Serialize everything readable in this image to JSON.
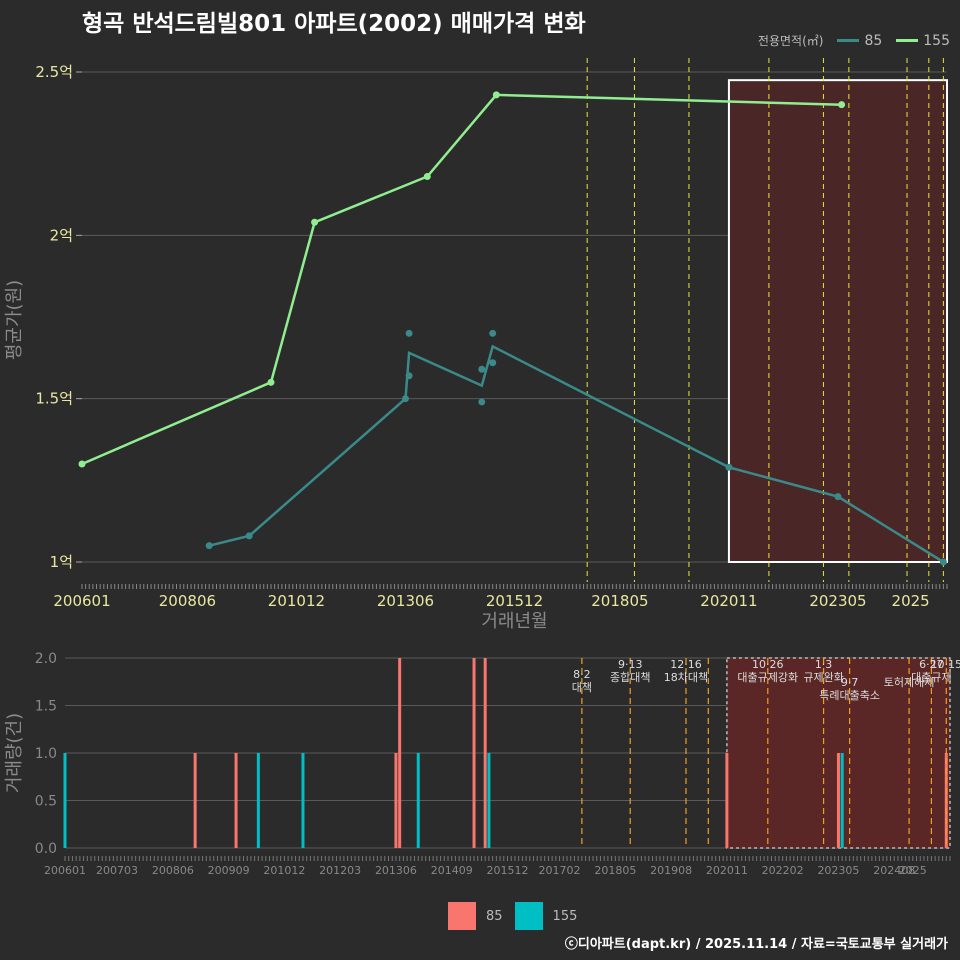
{
  "title": "형곡 반석드림빌801 아파트(2002) 매매가격 변화",
  "footer": "ⓒ디아파트(dapt.kr) / 2025.11.14 / 자료=국토교통부 실거래가",
  "legend": {
    "title": "전용면적(㎡)",
    "items": [
      {
        "label": "85",
        "line_color": "#3a8a8a",
        "bar_color": "#f8766d"
      },
      {
        "label": "155",
        "line_color": "#90ee90",
        "bar_color": "#00bfc4"
      }
    ]
  },
  "chart_data": [
    {
      "type": "line",
      "title": "형곡 반석드림빌801 아파트(2002) 매매가격 변화",
      "xlabel": "거래년월",
      "ylabel": "평균가(원)",
      "xlim": [
        "2006-01",
        "2025-11"
      ],
      "ylim": [
        1.0,
        2.5
      ],
      "x_ticks": [
        "200601",
        "200806",
        "201012",
        "201306",
        "201512",
        "201805",
        "202011",
        "202305",
        "2025"
      ],
      "y_ticks": [
        {
          "value": 1.0,
          "label": "1억"
        },
        {
          "value": 1.5,
          "label": "1.5억"
        },
        {
          "value": 2.0,
          "label": "2억"
        },
        {
          "value": 2.5,
          "label": "2.5억"
        }
      ],
      "series": [
        {
          "name": "85",
          "color": "#3a8a8a",
          "line": [
            [
              "2008-12",
              1.05
            ],
            [
              "2009-11",
              1.08
            ],
            [
              "2013-06",
              1.5
            ],
            [
              "2013-07",
              1.64
            ],
            [
              "2015-03",
              1.54
            ],
            [
              "2015-06",
              1.66
            ],
            [
              "2020-11",
              1.29
            ],
            [
              "2023-05",
              1.2
            ],
            [
              "2025-10",
              1.0
            ]
          ],
          "points": [
            [
              "2008-12",
              1.05
            ],
            [
              "2009-11",
              1.08
            ],
            [
              "2013-06",
              1.5
            ],
            [
              "2013-07",
              1.57
            ],
            [
              "2013-07",
              1.7
            ],
            [
              "2015-03",
              1.49
            ],
            [
              "2015-03",
              1.59
            ],
            [
              "2015-06",
              1.61
            ],
            [
              "2015-06",
              1.7
            ],
            [
              "2020-11",
              1.29
            ],
            [
              "2023-05",
              1.2
            ],
            [
              "2025-10",
              1.0
            ]
          ]
        },
        {
          "name": "155",
          "color": "#90ee90",
          "line": [
            [
              "2006-01",
              1.3
            ],
            [
              "2010-05",
              1.55
            ],
            [
              "2011-05",
              2.04
            ],
            [
              "2013-12",
              2.18
            ],
            [
              "2015-07",
              2.43
            ],
            [
              "2023-06",
              2.4
            ]
          ],
          "points": [
            [
              "2006-01",
              1.3
            ],
            [
              "2010-05",
              1.55
            ],
            [
              "2011-05",
              2.04
            ],
            [
              "2013-12",
              2.18
            ],
            [
              "2015-07",
              2.43
            ],
            [
              "2023-06",
              2.4
            ]
          ]
        }
      ],
      "highlight_box": {
        "from": "2020-11",
        "to": "2025-11",
        "ymin": 1.0,
        "ymax": 2.475
      },
      "policy_lines": [
        "2017-08",
        "2018-09",
        "2019-12",
        "2021-10",
        "2023-01",
        "2023-08",
        "2024-12",
        "2025-06",
        "2025-10"
      ]
    },
    {
      "type": "bar",
      "ylabel": "거래량(건)",
      "xlim": [
        "2006-01",
        "2025-11"
      ],
      "ylim": [
        0,
        2.0
      ],
      "y_ticks": [
        "0.0",
        "0.5",
        "1.0",
        "1.5",
        "2.0"
      ],
      "x_ticks": [
        "200601",
        "200703",
        "200806",
        "200909",
        "201012",
        "201203",
        "201306",
        "201409",
        "201512",
        "201702",
        "201805",
        "201908",
        "202011",
        "202202",
        "202305",
        "202408",
        "2025"
      ],
      "series": [
        {
          "name": "85",
          "color": "#f8766d",
          "bars": [
            [
              "2008-12",
              1
            ],
            [
              "2009-11",
              1
            ],
            [
              "2013-06",
              1
            ],
            [
              "2013-07",
              2
            ],
            [
              "2015-03",
              2
            ],
            [
              "2015-06",
              2
            ],
            [
              "2020-11",
              1
            ],
            [
              "2023-05",
              1
            ],
            [
              "2025-10",
              1
            ]
          ]
        },
        {
          "name": "155",
          "color": "#00bfc4",
          "bars": [
            [
              "2006-01",
              1
            ],
            [
              "2010-05",
              1
            ],
            [
              "2011-05",
              1
            ],
            [
              "2013-12",
              1
            ],
            [
              "2015-07",
              1
            ],
            [
              "2023-06",
              1
            ]
          ]
        }
      ],
      "highlight_box": {
        "from": "2020-11",
        "to": "2025-11",
        "ymin": 0,
        "ymax": 2.0
      },
      "policies": [
        {
          "date": "2017-08",
          "label": "8·2 대책"
        },
        {
          "date": "2018-09",
          "label": "9·13 종합대책"
        },
        {
          "date": "2019-12",
          "label": "12·16 18차대책"
        },
        {
          "date": "2020-06",
          "label": ""
        },
        {
          "date": "2021-10",
          "label": "10·26 대출규제강화"
        },
        {
          "date": "2023-01",
          "label": "1·3 규제완화"
        },
        {
          "date": "2023-08",
          "label": "9·7 특례대출축소"
        },
        {
          "date": "2024-12",
          "label": "토허제해제"
        },
        {
          "date": "2025-06",
          "label": "6·27 대출규제"
        },
        {
          "date": "2025-10",
          "label": "10·15"
        }
      ]
    }
  ]
}
